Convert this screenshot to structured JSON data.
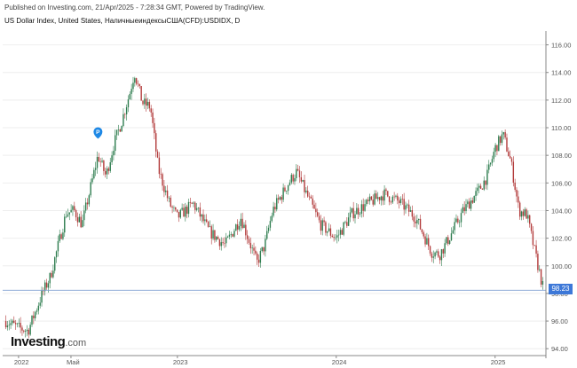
{
  "header": {
    "published": "Published on Investing.com, 21/Apr/2025 - 7:28:34 GMT, Powered by TradingView.",
    "symbol": "US Dollar Index, United States, НаличныеиндексыСША(CFD):USDIDX, D"
  },
  "logo": {
    "brand": "Investing",
    "domain": ".com"
  },
  "colors": {
    "up": "#2e7d4f",
    "down": "#b23a3a",
    "grid": "#eeeeee",
    "axis": "#555555",
    "last_price": "#3d78d8",
    "marker": "#1e88e5"
  },
  "chart_data": {
    "type": "candlestick",
    "title": "",
    "x_tick_labels": [
      "2022",
      "Май",
      "2023",
      "2024",
      "2025"
    ],
    "y_ticks": [
      94,
      96,
      98,
      100,
      102,
      104,
      106,
      108,
      110,
      112,
      114,
      116
    ],
    "y_tick_labels": [
      "94.00",
      "96.00",
      "98.00",
      "100.00",
      "102.00",
      "104.00",
      "106.00",
      "108.00",
      "110.00",
      "112.00",
      "114.00",
      "116.00"
    ],
    "ylim": [
      93.5,
      117
    ],
    "x_ticks": [
      2022.0,
      2022.33,
      2023.0,
      2024.0,
      2025.0
    ],
    "xlim": [
      2021.9,
      2025.32
    ],
    "last_price": 98.23,
    "last_price_label": "98.23",
    "marker": {
      "label": "P",
      "x": 2022.5,
      "y": 109.2
    },
    "series": [
      {
        "x": [
          2021.92,
          2022.0,
          2022.06,
          2022.1,
          2022.15,
          2022.2,
          2022.25,
          2022.3,
          2022.35,
          2022.4,
          2022.45,
          2022.5,
          2022.55,
          2022.6,
          2022.65,
          2022.7,
          2022.73,
          2022.78,
          2022.83,
          2022.88,
          2022.95,
          2023.0,
          2023.1,
          2023.2,
          2023.3,
          2023.4,
          2023.5,
          2023.55,
          2023.6,
          2023.7,
          2023.75,
          2023.8,
          2023.9,
          2024.0,
          2024.1,
          2024.2,
          2024.3,
          2024.4,
          2024.5,
          2024.6,
          2024.65,
          2024.7,
          2024.8,
          2024.9,
          2024.95,
          2025.0,
          2025.05,
          2025.1,
          2025.15,
          2025.2,
          2025.25,
          2025.3
        ],
        "y": [
          96.0,
          95.5,
          95.3,
          96.5,
          98.0,
          99.2,
          101.5,
          103.8,
          104.0,
          103.0,
          105.5,
          108.0,
          106.5,
          108.8,
          110.5,
          112.5,
          114.0,
          111.8,
          111.5,
          107.0,
          104.5,
          103.5,
          104.5,
          102.5,
          101.5,
          103.5,
          100.2,
          101.5,
          104.0,
          106.0,
          106.8,
          105.5,
          103.0,
          102.0,
          103.8,
          104.5,
          105.2,
          104.6,
          103.5,
          101.0,
          100.8,
          101.8,
          104.0,
          105.5,
          106.5,
          108.5,
          109.5,
          107.5,
          104.0,
          103.7,
          101.0,
          98.5
        ]
      }
    ]
  }
}
